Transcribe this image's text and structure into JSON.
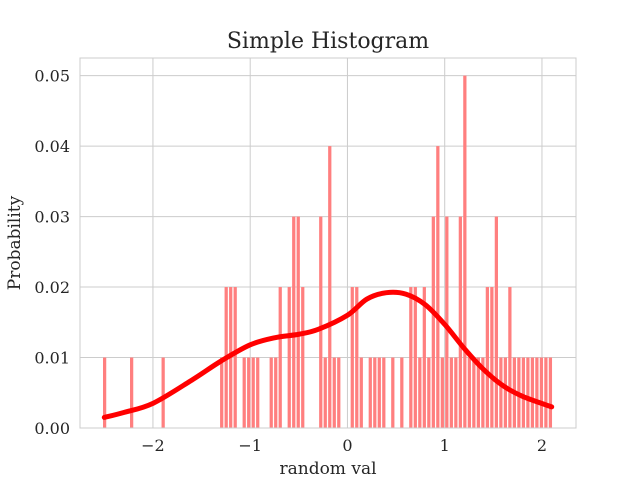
{
  "chart_data": {
    "type": "histogram",
    "title": "Simple Histogram",
    "xlabel": "random val",
    "ylabel": "Probability",
    "xlim": [
      -2.75,
      2.35
    ],
    "ylim": [
      0,
      0.0525
    ],
    "grid": true,
    "x_ticks": [
      {
        "value": -2,
        "label": "−2"
      },
      {
        "value": -1,
        "label": "−1"
      },
      {
        "value": 0,
        "label": "0"
      },
      {
        "value": 1,
        "label": "1"
      },
      {
        "value": 2,
        "label": "2"
      }
    ],
    "y_ticks": [
      {
        "value": 0.0,
        "label": "0.00"
      },
      {
        "value": 0.01,
        "label": "0.01"
      },
      {
        "value": 0.02,
        "label": "0.02"
      },
      {
        "value": 0.03,
        "label": "0.03"
      },
      {
        "value": 0.04,
        "label": "0.04"
      },
      {
        "value": 0.05,
        "label": "0.05"
      }
    ],
    "bins": {
      "start": -2.52,
      "width": 0.0463,
      "count": 100,
      "values": [
        0.01,
        0,
        0,
        0,
        0,
        0,
        0.01,
        0,
        0,
        0,
        0,
        0,
        0,
        0.01,
        0,
        0,
        0,
        0,
        0,
        0,
        0,
        0,
        0,
        0,
        0,
        0,
        0.01,
        0.02,
        0.02,
        0.02,
        0,
        0.01,
        0.01,
        0.01,
        0.01,
        0,
        0,
        0.01,
        0.01,
        0.02,
        0,
        0.02,
        0.03,
        0.03,
        0.02,
        0,
        0,
        0,
        0.03,
        0.01,
        0.04,
        0.01,
        0.01,
        0,
        0,
        0.02,
        0.02,
        0.01,
        0,
        0.01,
        0.01,
        0.01,
        0.01,
        0,
        0.01,
        0,
        0.01,
        0,
        0.02,
        0.02,
        0.01,
        0.02,
        0.01,
        0.03,
        0.04,
        0.01,
        0.03,
        0.01,
        0.01,
        0.03,
        0.05,
        0.01,
        0.01,
        0.01,
        0.01,
        0.02,
        0.02,
        0.03,
        0.01,
        0.01,
        0.02,
        0.01,
        0.01,
        0.01,
        0.01,
        0.01,
        0.01,
        0.01,
        0.01,
        0.01
      ]
    },
    "kde": {
      "x": [
        -2.5,
        -2.3,
        -2.0,
        -1.6,
        -1.3,
        -1.0,
        -0.75,
        -0.5,
        -0.3,
        0.0,
        0.2,
        0.4,
        0.6,
        0.8,
        1.0,
        1.2,
        1.4,
        1.6,
        1.8,
        2.1
      ],
      "y": [
        0.0015,
        0.0022,
        0.0035,
        0.0068,
        0.0095,
        0.0118,
        0.0128,
        0.0133,
        0.014,
        0.016,
        0.0183,
        0.0192,
        0.019,
        0.0175,
        0.0147,
        0.0113,
        0.0083,
        0.006,
        0.0045,
        0.003
      ]
    },
    "colors": {
      "bars": "#ff7f7f",
      "kde_line": "#ff0000",
      "grid": "#cccccc",
      "axes_edge": "#cccccc"
    }
  }
}
